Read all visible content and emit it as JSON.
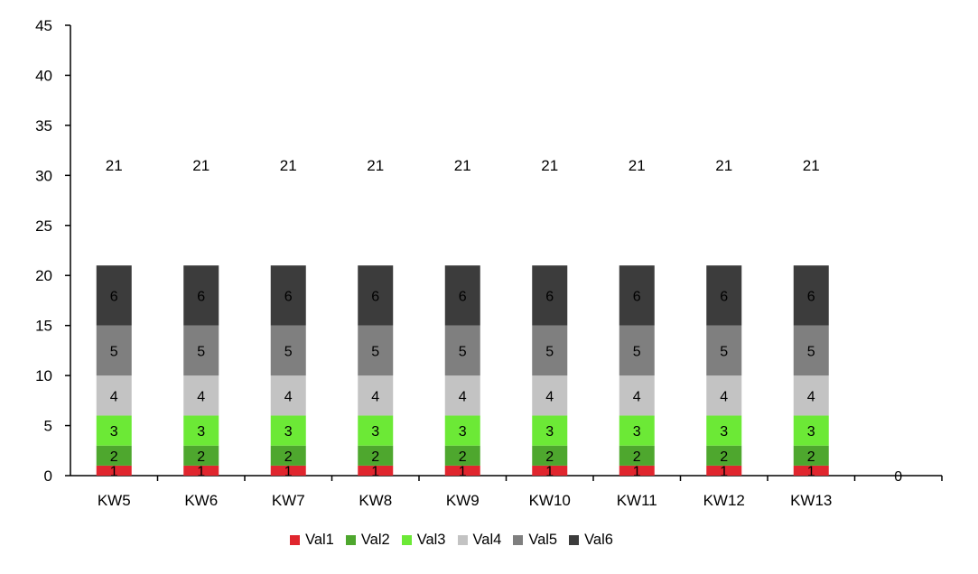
{
  "chart_data": {
    "type": "bar",
    "stacked": true,
    "title": "",
    "xlabel": "",
    "ylabel": "",
    "categories": [
      "KW5",
      "KW6",
      "KW7",
      "KW8",
      "KW9",
      "KW10",
      "KW11",
      "KW12",
      "KW13",
      ""
    ],
    "ylim": [
      0,
      45
    ],
    "yticks": [
      0,
      5,
      10,
      15,
      20,
      25,
      30,
      35,
      40,
      45
    ],
    "grid": false,
    "legend_position": "bottom",
    "series": [
      {
        "name": "Val1",
        "color": "#e0262e",
        "values": [
          1,
          1,
          1,
          1,
          1,
          1,
          1,
          1,
          1,
          0
        ]
      },
      {
        "name": "Val2",
        "color": "#4ea72e",
        "values": [
          2,
          2,
          2,
          2,
          2,
          2,
          2,
          2,
          2,
          0
        ]
      },
      {
        "name": "Val3",
        "color": "#6ce936",
        "values": [
          3,
          3,
          3,
          3,
          3,
          3,
          3,
          3,
          3,
          0
        ]
      },
      {
        "name": "Val4",
        "color": "#c3c3c3",
        "values": [
          4,
          4,
          4,
          4,
          4,
          4,
          4,
          4,
          4,
          0
        ]
      },
      {
        "name": "Val5",
        "color": "#7f7f7f",
        "values": [
          5,
          5,
          5,
          5,
          5,
          5,
          5,
          5,
          5,
          0
        ]
      },
      {
        "name": "Val6",
        "color": "#3c3c3c",
        "values": [
          6,
          6,
          6,
          6,
          6,
          6,
          6,
          6,
          6,
          0
        ]
      }
    ],
    "totals": [
      "21",
      "21",
      "21",
      "21",
      "21",
      "21",
      "21",
      "21",
      "21",
      "0"
    ]
  }
}
